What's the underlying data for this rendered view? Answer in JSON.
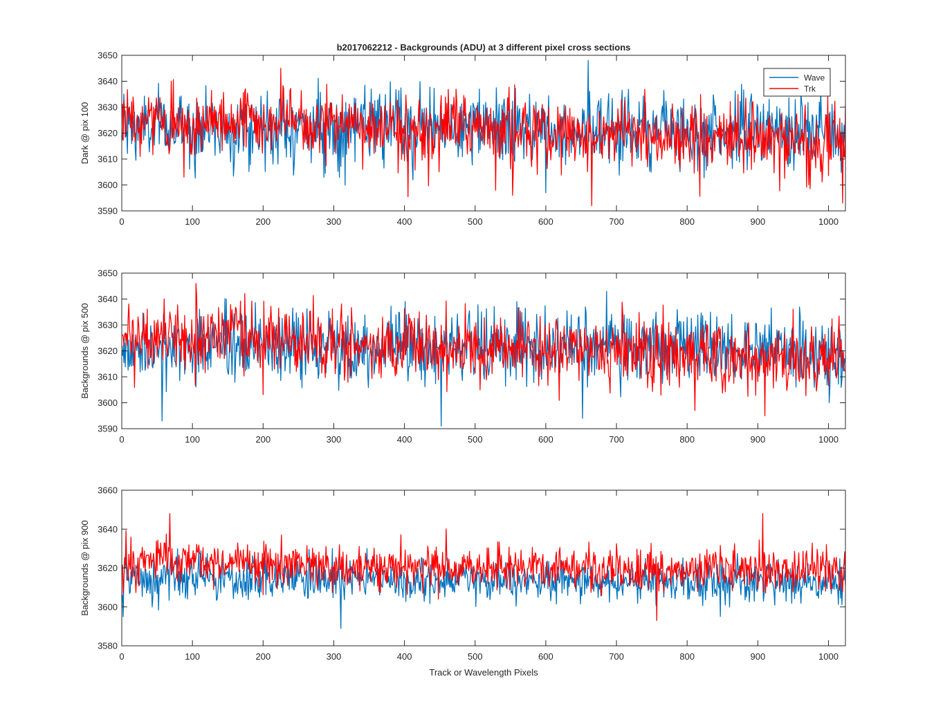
{
  "figure": {
    "title": "b2017062212 - Backgrounds (ADU) at 3 different pixel cross sections",
    "xlabel": "Track or Wavelength Pixels"
  },
  "colors": {
    "wave": "#0072BD",
    "trk": "#FF0000",
    "axes": "#262626",
    "background": "#ffffff"
  },
  "legend": {
    "placement": "top-right of first subplot",
    "entries": [
      "Wave",
      "Trk"
    ]
  },
  "chart_data": [
    {
      "type": "line",
      "ylabel": "Dark @ pix 100",
      "xlim": [
        0,
        1024
      ],
      "ylim": [
        3590,
        3650
      ],
      "xticks": [
        0,
        100,
        200,
        300,
        400,
        500,
        600,
        700,
        800,
        900,
        1000
      ],
      "yticks": [
        3590,
        3600,
        3610,
        3620,
        3630,
        3640,
        3650
      ],
      "grid": false,
      "series": [
        {
          "name": "Wave",
          "color": "#0072BD",
          "x_range": [
            1,
            1024
          ],
          "profile_x": [
            0,
            100,
            200,
            300,
            400,
            500,
            600,
            700,
            800,
            900,
            1024
          ],
          "profile_mean": [
            3622,
            3622,
            3622,
            3622,
            3622,
            3622,
            3622,
            3622,
            3621,
            3621,
            3620
          ],
          "noise_std": 7,
          "min": 3597,
          "max": 3648,
          "extrema": [
            {
              "x": 660,
              "y": 3648
            },
            {
              "x": 600,
              "y": 3597
            }
          ]
        },
        {
          "name": "Trk",
          "color": "#FF0000",
          "x_range": [
            1,
            1024
          ],
          "profile_x": [
            0,
            100,
            200,
            300,
            400,
            500,
            600,
            700,
            800,
            900,
            1024
          ],
          "profile_mean": [
            3624,
            3624,
            3624,
            3623,
            3622,
            3621,
            3620,
            3619,
            3618,
            3617,
            3617
          ],
          "noise_std": 6.5,
          "min": 3592,
          "max": 3645,
          "extrema": [
            {
              "x": 665,
              "y": 3592
            },
            {
              "x": 553,
              "y": 3596
            },
            {
              "x": 1020,
              "y": 3593
            },
            {
              "x": 225,
              "y": 3645
            }
          ]
        }
      ]
    },
    {
      "type": "line",
      "ylabel": "Backgrounds @ pix 500",
      "xlim": [
        0,
        1024
      ],
      "ylim": [
        3590,
        3650
      ],
      "xticks": [
        0,
        100,
        200,
        300,
        400,
        500,
        600,
        700,
        800,
        900,
        1000
      ],
      "yticks": [
        3590,
        3600,
        3610,
        3620,
        3630,
        3640,
        3650
      ],
      "grid": false,
      "series": [
        {
          "name": "Wave",
          "color": "#0072BD",
          "x_range": [
            1,
            1024
          ],
          "profile_x": [
            0,
            100,
            200,
            300,
            400,
            500,
            600,
            700,
            800,
            900,
            1024
          ],
          "profile_mean": [
            3621,
            3621,
            3622,
            3622,
            3622,
            3622,
            3622,
            3621,
            3621,
            3620,
            3620
          ],
          "noise_std": 7,
          "min": 3591,
          "max": 3645,
          "extrema": [
            {
              "x": 452,
              "y": 3591
            },
            {
              "x": 57,
              "y": 3593
            },
            {
              "x": 652,
              "y": 3594
            }
          ]
        },
        {
          "name": "Trk",
          "color": "#FF0000",
          "x_range": [
            1,
            1024
          ],
          "profile_x": [
            0,
            100,
            200,
            300,
            400,
            500,
            600,
            700,
            800,
            900,
            1024
          ],
          "profile_mean": [
            3626,
            3625,
            3624,
            3623,
            3622,
            3621,
            3620,
            3619,
            3618,
            3617,
            3617
          ],
          "noise_std": 6.5,
          "min": 3595,
          "max": 3646,
          "extrema": [
            {
              "x": 105,
              "y": 3646
            },
            {
              "x": 910,
              "y": 3595
            }
          ]
        }
      ]
    },
    {
      "type": "line",
      "ylabel": "Backgrounds @ pix 900",
      "xlim": [
        0,
        1024
      ],
      "ylim": [
        3580,
        3660
      ],
      "xticks": [
        0,
        100,
        200,
        300,
        400,
        500,
        600,
        700,
        800,
        900,
        1000
      ],
      "yticks": [
        3580,
        3600,
        3620,
        3640,
        3660
      ],
      "grid": false,
      "series": [
        {
          "name": "Wave",
          "color": "#0072BD",
          "x_range": [
            1,
            1024
          ],
          "profile_x": [
            0,
            100,
            200,
            300,
            400,
            500,
            600,
            700,
            800,
            900,
            1024
          ],
          "profile_mean": [
            3614,
            3614,
            3614,
            3614,
            3614,
            3613,
            3613,
            3613,
            3613,
            3613,
            3613
          ],
          "noise_std": 5.5,
          "min": 3589,
          "max": 3632,
          "extrema": [
            {
              "x": 310,
              "y": 3589
            },
            {
              "x": 2,
              "y": 3595
            }
          ]
        },
        {
          "name": "Trk",
          "color": "#FF0000",
          "x_range": [
            1,
            1024
          ],
          "profile_x": [
            0,
            100,
            200,
            300,
            400,
            500,
            600,
            700,
            800,
            900,
            1024
          ],
          "profile_mean": [
            3623,
            3624,
            3622,
            3621,
            3621,
            3620,
            3620,
            3619,
            3619,
            3619,
            3618
          ],
          "noise_std": 5.5,
          "min": 3593,
          "max": 3648,
          "extrema": [
            {
              "x": 68,
              "y": 3648
            },
            {
              "x": 907,
              "y": 3648
            },
            {
              "x": 757,
              "y": 3593
            }
          ]
        }
      ]
    }
  ]
}
